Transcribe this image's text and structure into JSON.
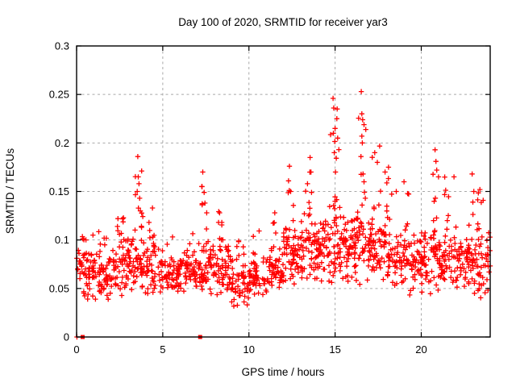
{
  "figure": {
    "background": "#ffffff",
    "frame_color": "#000000",
    "grid_color": "#a9a9a9",
    "text_color": "#000000"
  },
  "chart_data": {
    "type": "scatter",
    "title": "Day 100 of 2020, SRMTID for receiver yar3",
    "xlabel": "GPS time / hours",
    "ylabel": "SRMTID / TECUs",
    "xlim": [
      0,
      24
    ],
    "ylim": [
      0,
      0.3
    ],
    "xticks": [
      0,
      5,
      10,
      15,
      20
    ],
    "xtick_labels": [
      "0",
      "5",
      "10",
      "15",
      "20"
    ],
    "yticks": [
      0,
      0.05,
      0.1,
      0.15,
      0.2,
      0.25,
      0.3
    ],
    "ytick_labels": [
      "0",
      "0.05",
      "0.1",
      "0.15",
      "0.2",
      "0.25",
      "0.3"
    ],
    "grid": true,
    "grid_style": "dashed",
    "legend": false,
    "series_name": "SRMTID",
    "marker": "plus",
    "marker_color": "#ff0000",
    "marker_size_px": 7,
    "density_bins": [
      {
        "x0": 0,
        "x1": 1,
        "n": 58,
        "lo": 0.035,
        "hi": 0.1,
        "tail": 0.107
      },
      {
        "x0": 1,
        "x1": 2,
        "n": 58,
        "lo": 0.035,
        "hi": 0.095,
        "tail": 0.115
      },
      {
        "x0": 2,
        "x1": 3,
        "n": 58,
        "lo": 0.04,
        "hi": 0.105,
        "tail": 0.125
      },
      {
        "x0": 3,
        "x1": 4,
        "n": 62,
        "lo": 0.04,
        "hi": 0.11,
        "tail": 0.185,
        "sx": 3.6
      },
      {
        "x0": 4,
        "x1": 5,
        "n": 58,
        "lo": 0.035,
        "hi": 0.1,
        "tail": 0.135,
        "sx": 4.3
      },
      {
        "x0": 5,
        "x1": 6,
        "n": 54,
        "lo": 0.04,
        "hi": 0.085,
        "tail": 0.105
      },
      {
        "x0": 6,
        "x1": 7,
        "n": 54,
        "lo": 0.04,
        "hi": 0.09,
        "tail": 0.115
      },
      {
        "x0": 7,
        "x1": 8,
        "n": 62,
        "lo": 0.04,
        "hi": 0.11,
        "tail": 0.168,
        "sx": 7.4
      },
      {
        "x0": 8,
        "x1": 9,
        "n": 58,
        "lo": 0.04,
        "hi": 0.1,
        "tail": 0.13,
        "sx": 8.3
      },
      {
        "x0": 9,
        "x1": 10,
        "n": 54,
        "lo": 0.03,
        "hi": 0.08,
        "tail": 0.1
      },
      {
        "x0": 10,
        "x1": 11,
        "n": 54,
        "lo": 0.035,
        "hi": 0.085,
        "tail": 0.11
      },
      {
        "x0": 11,
        "x1": 12,
        "n": 58,
        "lo": 0.04,
        "hi": 0.1,
        "tail": 0.13,
        "sx": 11.5
      },
      {
        "x0": 12,
        "x1": 13,
        "n": 62,
        "lo": 0.05,
        "hi": 0.12,
        "tail": 0.178,
        "sx": 12.35
      },
      {
        "x0": 13,
        "x1": 14,
        "n": 62,
        "lo": 0.05,
        "hi": 0.125,
        "tail": 0.188,
        "sx": 13.4
      },
      {
        "x0": 14,
        "x1": 15,
        "n": 66,
        "lo": 0.05,
        "hi": 0.13,
        "tail": 0.215,
        "sx": 14.9
      },
      {
        "x0": 15,
        "x1": 16,
        "n": 66,
        "lo": 0.05,
        "hi": 0.14,
        "tail": 0.235,
        "sx": 15.15
      },
      {
        "x0": 16,
        "x1": 17,
        "n": 66,
        "lo": 0.05,
        "hi": 0.14,
        "tail": 0.23,
        "sx": 16.55
      },
      {
        "x0": 17,
        "x1": 18,
        "n": 62,
        "lo": 0.05,
        "hi": 0.13,
        "tail": 0.2,
        "sx": 17.4
      },
      {
        "x0": 18,
        "x1": 19,
        "n": 58,
        "lo": 0.045,
        "hi": 0.12,
        "tail": 0.175,
        "sx": 18.1
      },
      {
        "x0": 19,
        "x1": 20,
        "n": 58,
        "lo": 0.04,
        "hi": 0.11,
        "tail": 0.155,
        "sx": 19.3
      },
      {
        "x0": 20,
        "x1": 21,
        "n": 62,
        "lo": 0.04,
        "hi": 0.12,
        "tail": 0.19,
        "sx": 20.85
      },
      {
        "x0": 21,
        "x1": 22,
        "n": 58,
        "lo": 0.04,
        "hi": 0.12,
        "tail": 0.17,
        "sx": 21.4
      },
      {
        "x0": 22,
        "x1": 23,
        "n": 58,
        "lo": 0.04,
        "hi": 0.115,
        "tail": 0.17,
        "sx": 22.95
      },
      {
        "x0": 23,
        "x1": 24,
        "n": 58,
        "lo": 0.035,
        "hi": 0.11,
        "tail": 0.155,
        "sx": 23.4
      }
    ],
    "outlier_points": [
      [
        3.55,
        0.186
      ],
      [
        3.58,
        0.165
      ],
      [
        3.62,
        0.158
      ],
      [
        3.52,
        0.15
      ],
      [
        3.66,
        0.143
      ],
      [
        3.7,
        0.13
      ],
      [
        7.32,
        0.17
      ],
      [
        7.28,
        0.155
      ],
      [
        7.4,
        0.149
      ],
      [
        7.45,
        0.138
      ],
      [
        7.55,
        0.128
      ],
      [
        12.35,
        0.176
      ],
      [
        12.3,
        0.161
      ],
      [
        12.42,
        0.15
      ],
      [
        13.55,
        0.185
      ],
      [
        13.6,
        0.17
      ],
      [
        13.4,
        0.158
      ],
      [
        14.88,
        0.246
      ],
      [
        14.92,
        0.236
      ],
      [
        14.9,
        0.21
      ],
      [
        14.95,
        0.19
      ],
      [
        15.02,
        0.17
      ],
      [
        15.12,
        0.235
      ],
      [
        15.1,
        0.225
      ],
      [
        15.15,
        0.205
      ],
      [
        16.52,
        0.253
      ],
      [
        16.55,
        0.23
      ],
      [
        16.6,
        0.224
      ],
      [
        16.55,
        0.207
      ],
      [
        16.58,
        0.2
      ],
      [
        16.5,
        0.186
      ],
      [
        16.62,
        0.168
      ],
      [
        16.68,
        0.16
      ],
      [
        17.3,
        0.19
      ],
      [
        17.45,
        0.18
      ],
      [
        17.9,
        0.17
      ],
      [
        18.1,
        0.175
      ],
      [
        18.55,
        0.15
      ],
      [
        19.0,
        0.16
      ],
      [
        20.8,
        0.193
      ],
      [
        20.85,
        0.181
      ],
      [
        20.9,
        0.172
      ],
      [
        21.0,
        0.165
      ],
      [
        21.9,
        0.165
      ],
      [
        22.95,
        0.168
      ],
      [
        23.05,
        0.15
      ],
      [
        23.4,
        0.152
      ],
      [
        0.95,
        0.105
      ],
      [
        2.4,
        0.122
      ],
      [
        4.4,
        0.133
      ],
      [
        8.3,
        0.128
      ],
      [
        11.5,
        0.128
      ]
    ],
    "zero_plus_points": [
      [
        0.02,
        0.0
      ]
    ],
    "zero_square_x": [
      0.35,
      7.17
    ]
  }
}
